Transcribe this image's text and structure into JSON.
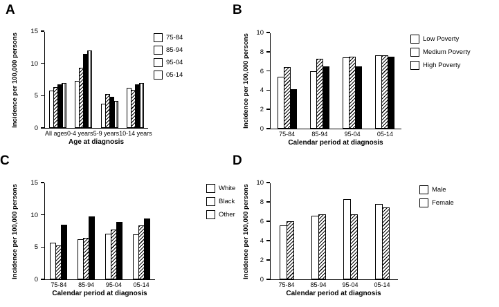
{
  "chart_data": [
    {
      "panel": "A",
      "type": "bar",
      "ylabel": "Incidence per 100,000 persons",
      "xlabel": "Age at diagnosis",
      "ylim": [
        0,
        15
      ],
      "yticks": [
        0,
        5,
        10,
        15
      ],
      "grid": false,
      "legend_position": "right",
      "categories": [
        "All ages",
        "0-4 years",
        "5-9 years",
        "10-14 years"
      ],
      "series": [
        {
          "name": "75-84",
          "pattern": "open",
          "values": [
            5.8,
            7.3,
            3.8,
            6.2
          ]
        },
        {
          "name": "85-94",
          "pattern": "hatch",
          "values": [
            6.3,
            9.3,
            5.3,
            5.9
          ]
        },
        {
          "name": "95-04",
          "pattern": "solid",
          "values": [
            6.8,
            11.5,
            4.8,
            6.8
          ]
        },
        {
          "name": "05-14",
          "pattern": "vstripe",
          "values": [
            7.0,
            12.0,
            4.2,
            7.0
          ]
        }
      ]
    },
    {
      "panel": "B",
      "type": "bar",
      "ylabel": "Incidence per 100,000 persons",
      "xlabel": "Calendar period at diagnosis",
      "ylim": [
        0,
        10
      ],
      "yticks": [
        0,
        2,
        4,
        6,
        8,
        10
      ],
      "grid": false,
      "legend_position": "right",
      "categories": [
        "75-84",
        "85-94",
        "95-04",
        "05-14"
      ],
      "series": [
        {
          "name": "Low Poverty",
          "pattern": "open",
          "values": [
            5.4,
            6.0,
            7.4,
            7.6
          ]
        },
        {
          "name": "Medium Poverty",
          "pattern": "hatch",
          "values": [
            6.4,
            7.3,
            7.5,
            7.6
          ]
        },
        {
          "name": "High Poverty",
          "pattern": "solid",
          "values": [
            4.1,
            6.5,
            6.5,
            7.5
          ]
        }
      ]
    },
    {
      "panel": "C",
      "type": "bar",
      "ylabel": "Incidence per 100,000 persons",
      "xlabel": "Calendar period at diagnosis",
      "ylim": [
        0,
        15
      ],
      "yticks": [
        0,
        5,
        10,
        15
      ],
      "grid": false,
      "legend_position": "right",
      "categories": [
        "75-84",
        "85-94",
        "95-04",
        "05-14"
      ],
      "series": [
        {
          "name": "White",
          "pattern": "open",
          "values": [
            5.7,
            6.2,
            7.1,
            7.0
          ]
        },
        {
          "name": "Black",
          "pattern": "hatch",
          "values": [
            5.2,
            6.4,
            7.7,
            8.4
          ]
        },
        {
          "name": "Other",
          "pattern": "solid",
          "values": [
            8.5,
            9.7,
            8.9,
            9.4
          ]
        }
      ]
    },
    {
      "panel": "D",
      "type": "bar",
      "ylabel": "Incidence per 100,000 persons",
      "xlabel": "Calendar period at diagnosis",
      "ylim": [
        0,
        10
      ],
      "yticks": [
        0,
        2,
        4,
        6,
        8,
        10
      ],
      "grid": false,
      "legend_position": "right",
      "categories": [
        "75-84",
        "85-94",
        "95-04",
        "05-14"
      ],
      "series": [
        {
          "name": "Male",
          "pattern": "open",
          "values": [
            5.6,
            6.6,
            8.3,
            7.8
          ]
        },
        {
          "name": "Female",
          "pattern": "hatch",
          "values": [
            6.0,
            6.7,
            6.7,
            7.4
          ]
        }
      ]
    }
  ]
}
